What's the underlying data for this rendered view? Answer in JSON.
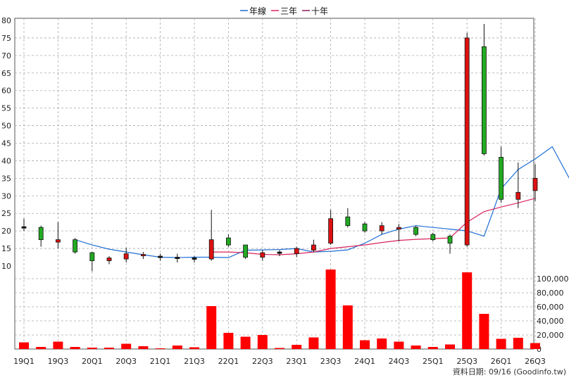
{
  "chart_data": {
    "type": "candlestick",
    "legend": {
      "position": "top-center",
      "items": [
        {
          "label": "年線",
          "color": "#1f6fd6"
        },
        {
          "label": "三年",
          "color": "#d8245a"
        },
        {
          "label": "十年",
          "color": "#8a1a5a"
        }
      ]
    },
    "price_axis": {
      "ylim": [
        10,
        80
      ],
      "ticks": [
        10,
        15,
        20,
        25,
        30,
        35,
        40,
        45,
        50,
        55,
        60,
        65,
        70,
        75,
        80
      ]
    },
    "volume_axis": {
      "ylim": [
        0,
        120000
      ],
      "ticks": [
        "0",
        "20,000",
        "40,000",
        "60,000",
        "80,000",
        "100,000"
      ],
      "tick_values": [
        0,
        20000,
        40000,
        60000,
        80000,
        100000
      ]
    },
    "x_tick_labels": [
      "19Q1",
      "19Q3",
      "20Q1",
      "20Q3",
      "21Q1",
      "21Q3",
      "22Q1",
      "22Q3",
      "23Q1",
      "23Q3",
      "24Q1",
      "24Q3",
      "25Q1",
      "25Q3",
      "26Q1",
      "26Q3"
    ],
    "quarters": [
      "19Q1",
      "19Q2",
      "19Q3",
      "19Q4",
      "20Q1",
      "20Q2",
      "20Q3",
      "20Q4",
      "21Q1",
      "21Q2",
      "21Q3",
      "21Q4",
      "22Q1",
      "22Q2",
      "22Q3",
      "22Q4",
      "23Q1",
      "23Q2",
      "23Q3",
      "23Q4",
      "24Q1",
      "24Q2",
      "24Q3",
      "24Q4",
      "25Q1",
      "25Q2",
      "25Q3",
      "25Q4",
      "26Q1",
      "26Q2",
      "26Q3"
    ],
    "ohlc": [
      {
        "o": 21.2,
        "h": 23.5,
        "l": 20.0,
        "c": 21.0,
        "dir": "flat"
      },
      {
        "o": 17.5,
        "h": 21.5,
        "l": 15.5,
        "c": 21.0,
        "dir": "down"
      },
      {
        "o": 17.5,
        "h": 22.5,
        "l": 15.0,
        "c": 16.8,
        "dir": "up"
      },
      {
        "o": 14.0,
        "h": 18.0,
        "l": 13.5,
        "c": 17.5,
        "dir": "down"
      },
      {
        "o": 11.5,
        "h": 14.0,
        "l": 8.5,
        "c": 13.8,
        "dir": "down"
      },
      {
        "o": 11.5,
        "h": 12.8,
        "l": 10.5,
        "c": 12.3,
        "dir": "up"
      },
      {
        "o": 12.0,
        "h": 15.2,
        "l": 11.0,
        "c": 13.5,
        "dir": "up"
      },
      {
        "o": 13.0,
        "h": 14.0,
        "l": 12.0,
        "c": 13.3,
        "dir": "up"
      },
      {
        "o": 12.5,
        "h": 13.5,
        "l": 11.5,
        "c": 12.8,
        "dir": "flat"
      },
      {
        "o": 12.3,
        "h": 13.5,
        "l": 11.0,
        "c": 12.5,
        "dir": "flat"
      },
      {
        "o": 12.2,
        "h": 12.8,
        "l": 11.0,
        "c": 12.3,
        "dir": "flat"
      },
      {
        "o": 12.0,
        "h": 26.0,
        "l": 11.5,
        "c": 17.5,
        "dir": "up"
      },
      {
        "o": 16.0,
        "h": 19.0,
        "l": 15.5,
        "c": 18.0,
        "dir": "down"
      },
      {
        "o": 12.5,
        "h": 16.0,
        "l": 12.0,
        "c": 16.0,
        "dir": "down"
      },
      {
        "o": 12.5,
        "h": 14.5,
        "l": 11.5,
        "c": 13.8,
        "dir": "up"
      },
      {
        "o": 13.8,
        "h": 14.5,
        "l": 12.8,
        "c": 14.0,
        "dir": "flat"
      },
      {
        "o": 13.5,
        "h": 15.5,
        "l": 12.5,
        "c": 15.0,
        "dir": "up"
      },
      {
        "o": 14.5,
        "h": 17.5,
        "l": 14.0,
        "c": 16.0,
        "dir": "up"
      },
      {
        "o": 16.5,
        "h": 26.0,
        "l": 16.0,
        "c": 23.5,
        "dir": "up"
      },
      {
        "o": 24.0,
        "h": 26.5,
        "l": 21.0,
        "c": 21.5,
        "dir": "down"
      },
      {
        "o": 22.0,
        "h": 22.5,
        "l": 19.5,
        "c": 20.0,
        "dir": "down"
      },
      {
        "o": 20.0,
        "h": 22.5,
        "l": 19.0,
        "c": 21.5,
        "dir": "up"
      },
      {
        "o": 20.5,
        "h": 22.0,
        "l": 17.0,
        "c": 21.0,
        "dir": "up"
      },
      {
        "o": 21.0,
        "h": 21.5,
        "l": 18.5,
        "c": 19.0,
        "dir": "down"
      },
      {
        "o": 17.5,
        "h": 19.5,
        "l": 17.0,
        "c": 19.0,
        "dir": "down"
      },
      {
        "o": 18.5,
        "h": 19.0,
        "l": 13.5,
        "c": 16.5,
        "dir": "down"
      },
      {
        "o": 16.0,
        "h": 76.5,
        "l": 15.5,
        "c": 75.0,
        "dir": "up"
      },
      {
        "o": 72.5,
        "h": 79.0,
        "l": 41.5,
        "c": 42.0,
        "dir": "down"
      },
      {
        "o": 41.0,
        "h": 44.0,
        "l": 28.0,
        "c": 29.0,
        "dir": "down"
      },
      {
        "o": 29.0,
        "h": 39.5,
        "l": 26.5,
        "c": 31.0,
        "dir": "up"
      },
      {
        "o": 31.5,
        "h": 39.0,
        "l": 28.5,
        "c": 35.0,
        "dir": "up"
      }
    ],
    "series": [
      {
        "name": "年線",
        "color": "#1f6fd6",
        "start_index": 3,
        "values": [
          17.5,
          16.0,
          14.8,
          14.0,
          13.2,
          12.5,
          12.4,
          12.5,
          12.5,
          12.4,
          14.5,
          14.6,
          14.7,
          15.0,
          14.0,
          14.2,
          14.6,
          16.5,
          19.0,
          20.5,
          21.5,
          21.0,
          20.5,
          20.0,
          18.5,
          32.0,
          37.5,
          40.5,
          44.0,
          35.0
        ]
      },
      {
        "name": "三年",
        "color": "#d8245a",
        "start_index": 11,
        "values": [
          14.0,
          14.0,
          13.8,
          13.3,
          13.2,
          13.5,
          14.0,
          15.0,
          15.5,
          16.0,
          16.7,
          17.3,
          17.6,
          17.8,
          18.0,
          22.5,
          25.5,
          26.8,
          28.0,
          29.3
        ]
      }
    ],
    "volumes": [
      9500,
      3000,
      10500,
      3000,
      2000,
      2000,
      7500,
      4000,
      1000,
      5000,
      2500,
      61000,
      23000,
      17500,
      20000,
      1500,
      6000,
      16500,
      113000,
      62000,
      12500,
      15000,
      10500,
      5000,
      3000,
      6500,
      109000,
      50000,
      14500,
      16000,
      8500
    ]
  },
  "footer": {
    "source": "資料日期: 09/16  (Goodinfo.tw)"
  },
  "colors": {
    "up": "#dd1111",
    "down": "#22aa22",
    "volume": "#ff0000",
    "grid": "#aaaaaa"
  }
}
